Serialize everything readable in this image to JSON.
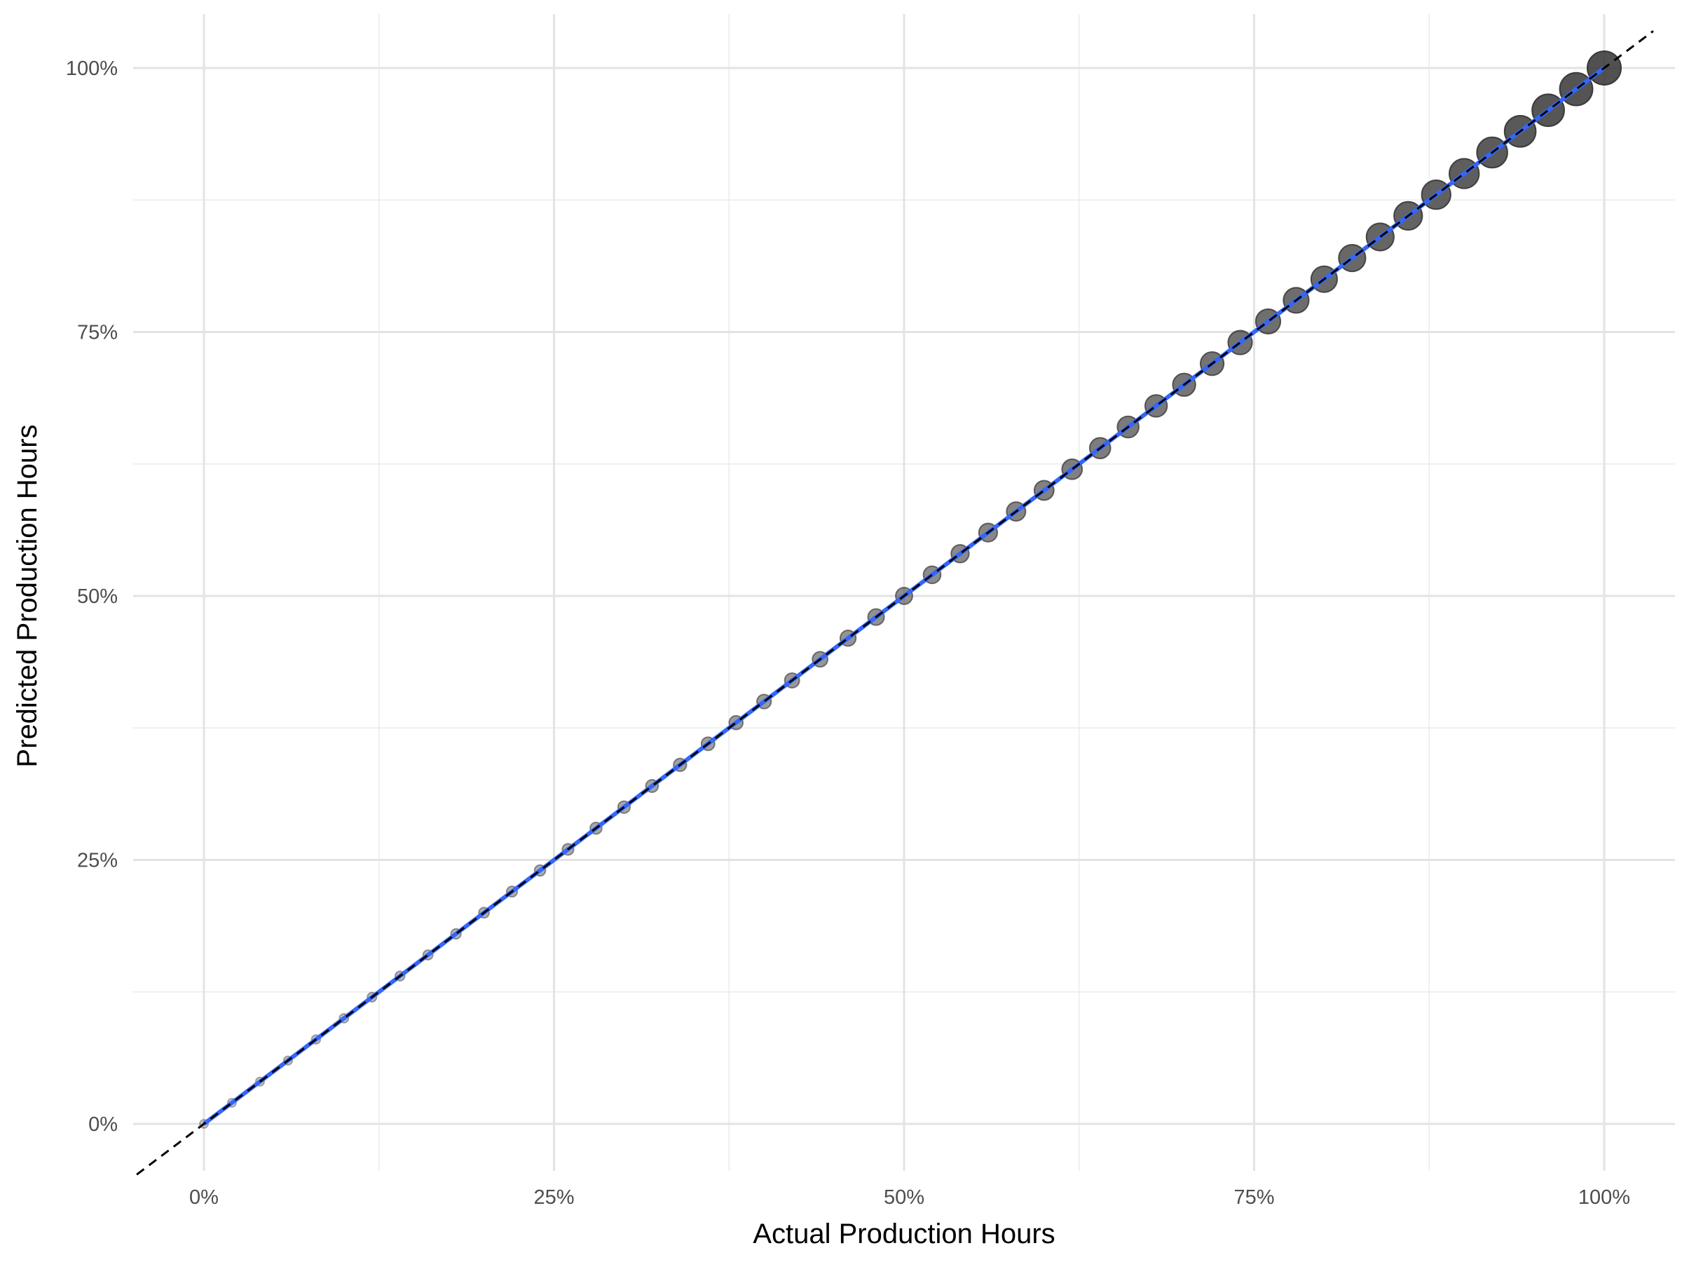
{
  "chart_data": {
    "type": "scatter",
    "title": "",
    "xlabel": "Actual Production Hours",
    "ylabel": "Predicted Production Hours",
    "xlim": [
      -0.048,
      1.05
    ],
    "ylim": [
      -0.048,
      1.05
    ],
    "x_ticks": [
      0,
      0.25,
      0.5,
      0.75,
      1.0
    ],
    "x_tick_labels": [
      "0%",
      "25%",
      "50%",
      "75%",
      "100%"
    ],
    "y_ticks": [
      0,
      0.25,
      0.5,
      0.75,
      1.0
    ],
    "y_tick_labels": [
      "0%",
      "25%",
      "50%",
      "75%",
      "100%"
    ],
    "grid": true,
    "reference_line": {
      "slope": 1,
      "intercept": 0,
      "style": "dashed",
      "color": "#000000"
    },
    "fit_line": {
      "method": "linear",
      "color": "#3366FF",
      "x": [
        0,
        1
      ],
      "y": [
        0,
        1
      ]
    },
    "point_color": "#333333",
    "series": [
      {
        "x": [
          0,
          0.02,
          0.04,
          0.06,
          0.08,
          0.1,
          0.12,
          0.14,
          0.16,
          0.18,
          0.2,
          0.22,
          0.24,
          0.26,
          0.28,
          0.3,
          0.32,
          0.34,
          0.36,
          0.38,
          0.4,
          0.42,
          0.44,
          0.46,
          0.48,
          0.5,
          0.52,
          0.54,
          0.56,
          0.58,
          0.6,
          0.62,
          0.64,
          0.66,
          0.68,
          0.7,
          0.72,
          0.74,
          0.76,
          0.78,
          0.8,
          0.82,
          0.84,
          0.86,
          0.88,
          0.9,
          0.92,
          0.94,
          0.96,
          0.98,
          1.0
        ],
        "y": [
          0,
          0.02,
          0.04,
          0.06,
          0.08,
          0.1,
          0.12,
          0.14,
          0.16,
          0.18,
          0.2,
          0.22,
          0.24,
          0.26,
          0.28,
          0.3,
          0.32,
          0.34,
          0.36,
          0.38,
          0.4,
          0.42,
          0.44,
          0.46,
          0.48,
          0.5,
          0.52,
          0.54,
          0.56,
          0.58,
          0.6,
          0.62,
          0.64,
          0.66,
          0.68,
          0.7,
          0.72,
          0.74,
          0.76,
          0.78,
          0.8,
          0.82,
          0.84,
          0.86,
          0.88,
          0.9,
          0.92,
          0.94,
          0.96,
          0.98,
          1.0
        ]
      }
    ]
  }
}
